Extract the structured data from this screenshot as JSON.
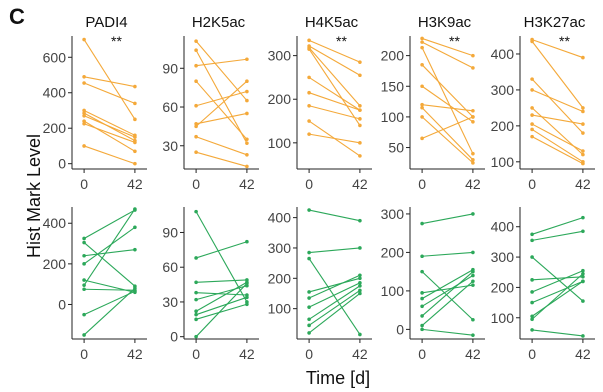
{
  "panel_letter": "C",
  "ylabel": "Hist Mark Level",
  "xlabel": "Time [d]",
  "colors": {
    "top": "#F4A93A",
    "bottom": "#2CA85A",
    "axis": "#222222"
  },
  "chart_data": [
    {
      "type": "line",
      "row": 1,
      "title": "PADI4",
      "significance": "**",
      "x": [
        0,
        42
      ],
      "xticks": [
        0,
        42
      ],
      "xlim": [
        -10,
        52
      ],
      "ylim": [
        -30,
        720
      ],
      "yticks": [
        0,
        200,
        400,
        600
      ],
      "pairs": [
        [
          700,
          250
        ],
        [
          490,
          435
        ],
        [
          455,
          340
        ],
        [
          300,
          160
        ],
        [
          285,
          130
        ],
        [
          270,
          150
        ],
        [
          240,
          70
        ],
        [
          225,
          120
        ],
        [
          100,
          0
        ]
      ]
    },
    {
      "type": "line",
      "row": 1,
      "title": "H2K5ac",
      "significance": "",
      "x": [
        0,
        42
      ],
      "xticks": [
        0,
        42
      ],
      "xlim": [
        -10,
        52
      ],
      "ylim": [
        12,
        115
      ],
      "yticks": [
        30,
        60,
        90
      ],
      "pairs": [
        [
          111,
          65
        ],
        [
          104,
          32
        ],
        [
          92,
          97
        ],
        [
          80,
          35
        ],
        [
          61,
          72
        ],
        [
          47,
          55
        ],
        [
          45,
          80
        ],
        [
          37,
          23
        ],
        [
          25,
          14
        ]
      ]
    },
    {
      "type": "line",
      "row": 1,
      "title": "H4K5ac",
      "significance": "**",
      "x": [
        0,
        42
      ],
      "xticks": [
        0,
        42
      ],
      "xlim": [
        -10,
        52
      ],
      "ylim": [
        40,
        345
      ],
      "yticks": [
        100,
        200,
        300
      ],
      "pairs": [
        [
          335,
          285
        ],
        [
          322,
          255
        ],
        [
          318,
          185
        ],
        [
          315,
          140
        ],
        [
          250,
          175
        ],
        [
          215,
          175
        ],
        [
          185,
          155
        ],
        [
          150,
          70
        ],
        [
          120,
          100
        ]
      ]
    },
    {
      "type": "line",
      "row": 1,
      "title": "H3K9ac",
      "significance": "**",
      "x": [
        0,
        42
      ],
      "xticks": [
        0,
        42
      ],
      "xlim": [
        -10,
        52
      ],
      "ylim": [
        15,
        232
      ],
      "yticks": [
        50,
        100,
        150,
        200
      ],
      "pairs": [
        [
          228,
          200
        ],
        [
          222,
          180
        ],
        [
          213,
          40
        ],
        [
          185,
          100
        ],
        [
          150,
          92
        ],
        [
          120,
          110
        ],
        [
          115,
          30
        ],
        [
          100,
          25
        ],
        [
          65,
          100
        ]
      ]
    },
    {
      "type": "line",
      "row": 1,
      "title": "H3K27ac",
      "significance": "**",
      "x": [
        0,
        42
      ],
      "xticks": [
        0,
        42
      ],
      "xlim": [
        -10,
        52
      ],
      "ylim": [
        80,
        450
      ],
      "yticks": [
        100,
        200,
        300,
        400
      ],
      "pairs": [
        [
          440,
          390
        ],
        [
          435,
          250
        ],
        [
          330,
          180
        ],
        [
          300,
          240
        ],
        [
          250,
          120
        ],
        [
          230,
          205
        ],
        [
          205,
          130
        ],
        [
          190,
          100
        ],
        [
          170,
          95
        ]
      ]
    },
    {
      "type": "line",
      "row": 2,
      "title": "",
      "significance": "",
      "x": [
        0,
        42
      ],
      "xticks": [
        0,
        42
      ],
      "xlim": [
        -10,
        52
      ],
      "ylim": [
        -170,
        480
      ],
      "yticks": [
        0,
        200,
        400
      ],
      "pairs": [
        [
          325,
          465
        ],
        [
          305,
          90
        ],
        [
          240,
          270
        ],
        [
          200,
          380
        ],
        [
          120,
          60
        ],
        [
          95,
          470
        ],
        [
          75,
          70
        ],
        [
          -50,
          65
        ],
        [
          -150,
          80
        ]
      ]
    },
    {
      "type": "line",
      "row": 2,
      "title": "",
      "significance": "",
      "x": [
        0,
        42
      ],
      "xticks": [
        0,
        42
      ],
      "xlim": [
        -10,
        52
      ],
      "ylim": [
        -2,
        112
      ],
      "yticks": [
        0,
        30,
        60,
        90
      ],
      "pairs": [
        [
          108,
          30
        ],
        [
          68,
          82
        ],
        [
          47,
          49
        ],
        [
          38,
          36
        ],
        [
          32,
          44
        ],
        [
          22,
          47
        ],
        [
          19,
          34
        ],
        [
          15,
          28
        ],
        [
          0,
          46
        ]
      ]
    },
    {
      "type": "line",
      "row": 2,
      "title": "",
      "significance": "",
      "x": [
        0,
        42
      ],
      "xticks": [
        0,
        42
      ],
      "xlim": [
        -10,
        52
      ],
      "ylim": [
        0,
        435
      ],
      "yticks": [
        100,
        200,
        300,
        400
      ],
      "pairs": [
        [
          425,
          390
        ],
        [
          285,
          300
        ],
        [
          265,
          15
        ],
        [
          155,
          200
        ],
        [
          135,
          210
        ],
        [
          105,
          185
        ],
        [
          65,
          175
        ],
        [
          45,
          160
        ],
        [
          20,
          150
        ]
      ]
    },
    {
      "type": "line",
      "row": 2,
      "title": "",
      "significance": "",
      "x": [
        0,
        42
      ],
      "xticks": [
        0,
        42
      ],
      "xlim": [
        -10,
        52
      ],
      "ylim": [
        -25,
        318
      ],
      "yticks": [
        0,
        100,
        200,
        300
      ],
      "pairs": [
        [
          275,
          300
        ],
        [
          190,
          200
        ],
        [
          150,
          25
        ],
        [
          95,
          115
        ],
        [
          80,
          155
        ],
        [
          60,
          140
        ],
        [
          35,
          150
        ],
        [
          10,
          125
        ],
        [
          0,
          -15
        ]
      ]
    },
    {
      "type": "line",
      "row": 2,
      "title": "",
      "significance": "",
      "x": [
        0,
        42
      ],
      "xticks": [
        0,
        42
      ],
      "xlim": [
        -10,
        52
      ],
      "ylim": [
        30,
        465
      ],
      "yticks": [
        100,
        200,
        300,
        400
      ],
      "pairs": [
        [
          375,
          430
        ],
        [
          355,
          385
        ],
        [
          300,
          155
        ],
        [
          225,
          235
        ],
        [
          185,
          255
        ],
        [
          150,
          220
        ],
        [
          105,
          220
        ],
        [
          95,
          245
        ],
        [
          60,
          40
        ]
      ]
    }
  ]
}
